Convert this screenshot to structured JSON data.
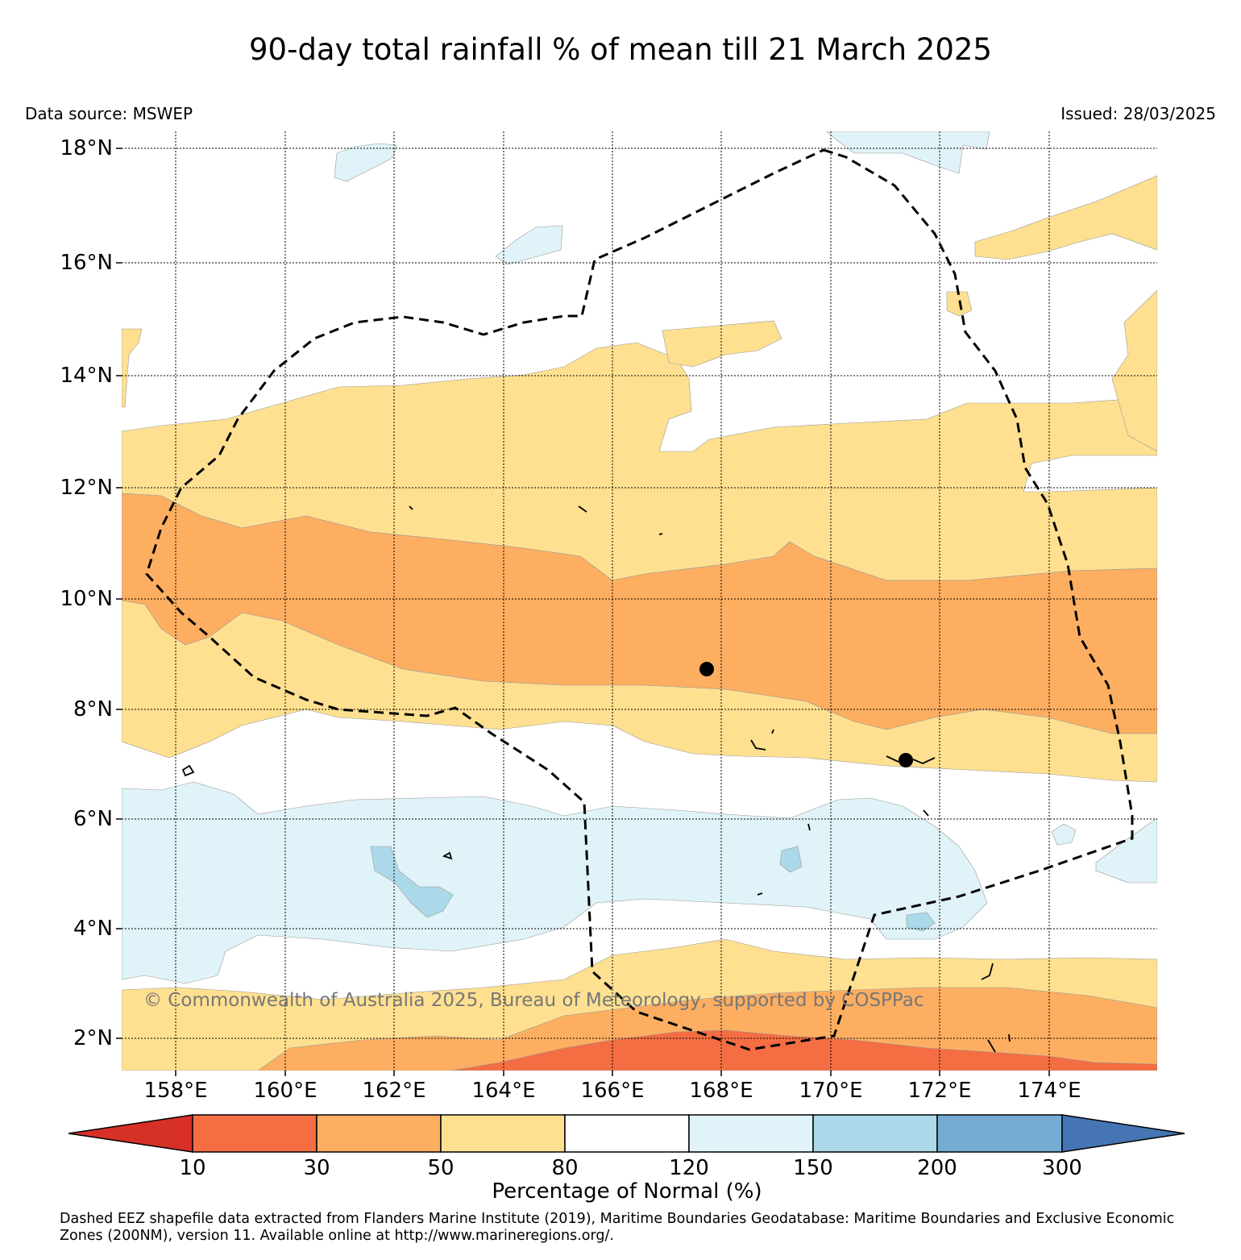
{
  "title": "90-day total rainfall % of mean till 21 March 2025",
  "data_source": "Data source: MSWEP",
  "issued": "Issued: 28/03/2025",
  "copyright": "© Commonwealth of Australia 2025, Bureau of Meteorology, supported by COSPPac",
  "lat_labels": [
    "18°N",
    "16°N",
    "14°N",
    "12°N",
    "10°N",
    "8°N",
    "6°N",
    "4°N",
    "2°N"
  ],
  "lon_labels": [
    "158°E",
    "160°E",
    "162°E",
    "164°E",
    "166°E",
    "168°E",
    "170°E",
    "172°E",
    "174°E"
  ],
  "colorbar": {
    "title": "Percentage of Normal (%)",
    "ticks": [
      "10",
      "30",
      "50",
      "80",
      "120",
      "150",
      "200",
      "300"
    ],
    "colors": {
      "lt10": "#d73027",
      "c10_30": "#f46d43",
      "c30_50": "#fdae61",
      "c50_80": "#fee090",
      "c80_120": "#ffffff",
      "c120_150": "#e0f3f8",
      "c150_200": "#abd9e9",
      "c200_300": "#74add1",
      "gt300": "#4575b4"
    }
  },
  "footnote": "Dashed EEZ shapefile data extracted from Flanders Marine Institute (2019), Maritime Boundaries Geodatabase: Maritime Boundaries and Exclusive Economic Zones (200NM), version 11. Available online at http://www.marineregions.org/."
}
